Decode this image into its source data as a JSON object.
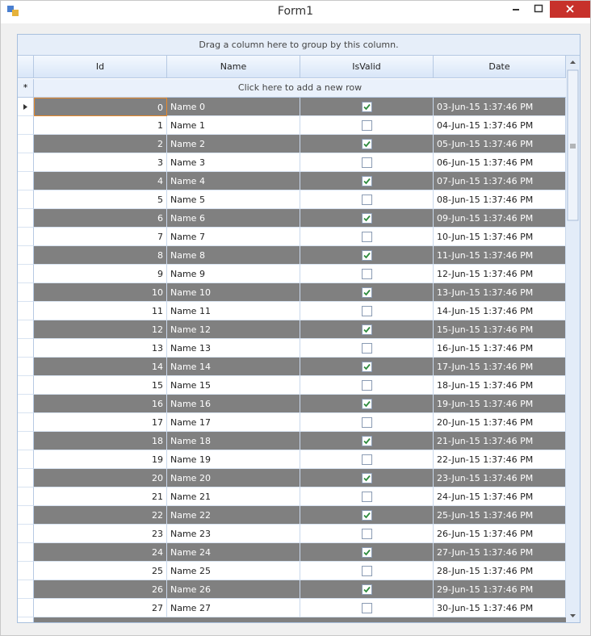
{
  "window": {
    "title": "Form1"
  },
  "grid": {
    "group_panel": "Drag a column here to group by this column.",
    "columns": [
      "Id",
      "Name",
      "IsValid",
      "Date"
    ],
    "new_row": "Click here to add a new row",
    "rows": [
      {
        "id": 0,
        "name": "Name 0",
        "is_valid": true,
        "date": "03-Jun-15 1:37:46 PM"
      },
      {
        "id": 1,
        "name": "Name 1",
        "is_valid": false,
        "date": "04-Jun-15 1:37:46 PM"
      },
      {
        "id": 2,
        "name": "Name 2",
        "is_valid": true,
        "date": "05-Jun-15 1:37:46 PM"
      },
      {
        "id": 3,
        "name": "Name 3",
        "is_valid": false,
        "date": "06-Jun-15 1:37:46 PM"
      },
      {
        "id": 4,
        "name": "Name 4",
        "is_valid": true,
        "date": "07-Jun-15 1:37:46 PM"
      },
      {
        "id": 5,
        "name": "Name 5",
        "is_valid": false,
        "date": "08-Jun-15 1:37:46 PM"
      },
      {
        "id": 6,
        "name": "Name 6",
        "is_valid": true,
        "date": "09-Jun-15 1:37:46 PM"
      },
      {
        "id": 7,
        "name": "Name 7",
        "is_valid": false,
        "date": "10-Jun-15 1:37:46 PM"
      },
      {
        "id": 8,
        "name": "Name 8",
        "is_valid": true,
        "date": "11-Jun-15 1:37:46 PM"
      },
      {
        "id": 9,
        "name": "Name 9",
        "is_valid": false,
        "date": "12-Jun-15 1:37:46 PM"
      },
      {
        "id": 10,
        "name": "Name 10",
        "is_valid": true,
        "date": "13-Jun-15 1:37:46 PM"
      },
      {
        "id": 11,
        "name": "Name 11",
        "is_valid": false,
        "date": "14-Jun-15 1:37:46 PM"
      },
      {
        "id": 12,
        "name": "Name 12",
        "is_valid": true,
        "date": "15-Jun-15 1:37:46 PM"
      },
      {
        "id": 13,
        "name": "Name 13",
        "is_valid": false,
        "date": "16-Jun-15 1:37:46 PM"
      },
      {
        "id": 14,
        "name": "Name 14",
        "is_valid": true,
        "date": "17-Jun-15 1:37:46 PM"
      },
      {
        "id": 15,
        "name": "Name 15",
        "is_valid": false,
        "date": "18-Jun-15 1:37:46 PM"
      },
      {
        "id": 16,
        "name": "Name 16",
        "is_valid": true,
        "date": "19-Jun-15 1:37:46 PM"
      },
      {
        "id": 17,
        "name": "Name 17",
        "is_valid": false,
        "date": "20-Jun-15 1:37:46 PM"
      },
      {
        "id": 18,
        "name": "Name 18",
        "is_valid": true,
        "date": "21-Jun-15 1:37:46 PM"
      },
      {
        "id": 19,
        "name": "Name 19",
        "is_valid": false,
        "date": "22-Jun-15 1:37:46 PM"
      },
      {
        "id": 20,
        "name": "Name 20",
        "is_valid": true,
        "date": "23-Jun-15 1:37:46 PM"
      },
      {
        "id": 21,
        "name": "Name 21",
        "is_valid": false,
        "date": "24-Jun-15 1:37:46 PM"
      },
      {
        "id": 22,
        "name": "Name 22",
        "is_valid": true,
        "date": "25-Jun-15 1:37:46 PM"
      },
      {
        "id": 23,
        "name": "Name 23",
        "is_valid": false,
        "date": "26-Jun-15 1:37:46 PM"
      },
      {
        "id": 24,
        "name": "Name 24",
        "is_valid": true,
        "date": "27-Jun-15 1:37:46 PM"
      },
      {
        "id": 25,
        "name": "Name 25",
        "is_valid": false,
        "date": "28-Jun-15 1:37:46 PM"
      },
      {
        "id": 26,
        "name": "Name 26",
        "is_valid": true,
        "date": "29-Jun-15 1:37:46 PM"
      },
      {
        "id": 27,
        "name": "Name 27",
        "is_valid": false,
        "date": "30-Jun-15 1:37:46 PM"
      }
    ]
  }
}
